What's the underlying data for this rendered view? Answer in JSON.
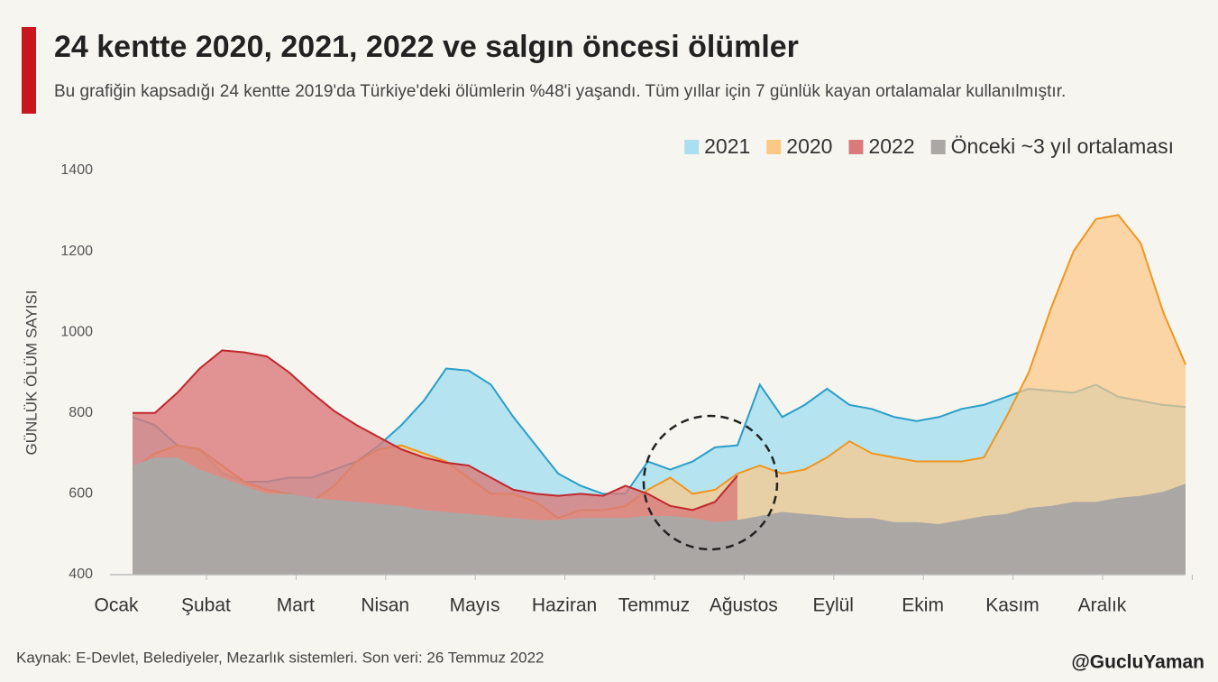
{
  "chart_data": {
    "type": "area",
    "title": "24 kentte 2020, 2021, 2022 ve salgın öncesi ölümler",
    "subtitle": "Bu grafiğin kapsadığı 24 kentte 2019'da Türkiye'deki ölümlerin %48'i yaşandı. Tüm yıllar için 7 günlük kayan ortalamalar kullanılmıştır.",
    "y_label": "GÜNLÜK ÖLÜM SAYISI",
    "source": "Kaynak: E-Devlet, Belediyeler, Mezarlık sistemleri. Son veri: 26 Temmuz 2022",
    "credit": "@GucluYaman",
    "legend": "top-right",
    "categories": [
      "Ocak",
      null,
      null,
      null,
      "Şubat",
      null,
      null,
      null,
      "Mart",
      null,
      null,
      null,
      "Nisan",
      null,
      null,
      null,
      "Mayıs",
      null,
      null,
      null,
      "Haziran",
      null,
      null,
      null,
      "Temmuz",
      null,
      null,
      null,
      "Ağustos",
      null,
      null,
      null,
      "Eylül",
      null,
      null,
      null,
      "Ekim",
      null,
      null,
      null,
      "Kasım",
      null,
      null,
      null,
      "Aralık",
      null,
      null,
      null
    ],
    "ylim": [
      400,
      1400
    ],
    "yticks": [
      400,
      600,
      800,
      1000,
      1200,
      1400
    ],
    "series": [
      {
        "name": "2021",
        "color": "#a9dff0",
        "line_color": "#2a9ec8",
        "values": [
          790,
          770,
          720,
          710,
          650,
          630,
          630,
          640,
          640,
          660,
          680,
          720,
          770,
          830,
          910,
          905,
          870,
          790,
          720,
          650,
          620,
          600,
          600,
          680,
          660,
          680,
          715,
          720,
          870,
          790,
          820,
          860,
          820,
          810,
          790,
          780,
          790,
          810,
          820,
          840,
          860,
          855,
          850,
          870,
          840,
          830,
          820,
          815
        ]
      },
      {
        "name": "2020",
        "color": "#fcc886",
        "line_color": "#f0961e",
        "values": [
          660,
          700,
          720,
          710,
          670,
          630,
          610,
          600,
          580,
          620,
          680,
          710,
          720,
          700,
          680,
          640,
          600,
          600,
          580,
          540,
          560,
          560,
          570,
          610,
          640,
          600,
          610,
          650,
          670,
          650,
          660,
          690,
          730,
          700,
          690,
          680,
          680,
          680,
          690,
          790,
          900,
          1060,
          1200,
          1280,
          1290,
          1220,
          1050,
          920
        ]
      },
      {
        "name": "2022",
        "color": "#d97b7b",
        "line_color": "#c0272d",
        "values": [
          800,
          800,
          850,
          910,
          955,
          950,
          940,
          900,
          850,
          805,
          770,
          740,
          710,
          690,
          677,
          670,
          640,
          610,
          600,
          595,
          600,
          595,
          620,
          600,
          570,
          560,
          580,
          645,
          null,
          null,
          null,
          null,
          null,
          null,
          null,
          null,
          null,
          null,
          null,
          null,
          null,
          null,
          null,
          null,
          null,
          null,
          null,
          null
        ]
      },
      {
        "name": "Önceki ~3 yıl ortalaması",
        "color": "#aba7a4",
        "values": [
          670,
          690,
          690,
          660,
          640,
          620,
          600,
          600,
          590,
          585,
          580,
          575,
          570,
          560,
          555,
          550,
          545,
          540,
          535,
          535,
          540,
          540,
          540,
          545,
          545,
          540,
          530,
          535,
          545,
          555,
          550,
          545,
          540,
          540,
          530,
          530,
          525,
          535,
          545,
          550,
          565,
          570,
          580,
          580,
          590,
          595,
          605,
          625
        ]
      }
    ]
  }
}
